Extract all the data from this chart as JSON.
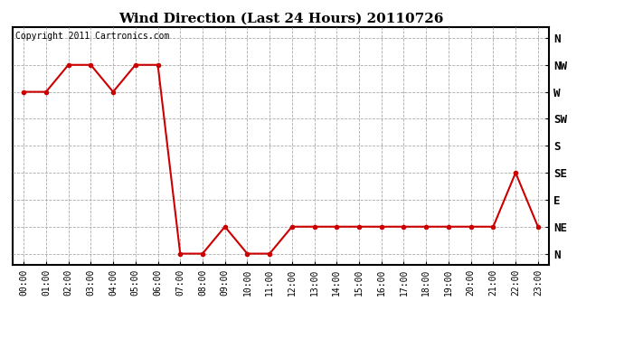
{
  "title": "Wind Direction (Last 24 Hours) 20110726",
  "copyright": "Copyright 2011 Cartronics.com",
  "line_color": "#cc0000",
  "fig_bg_color": "#ffffff",
  "plot_bg_color": "#ffffff",
  "grid_color": "#aaaaaa",
  "times": [
    "00:00",
    "01:00",
    "02:00",
    "03:00",
    "04:00",
    "05:00",
    "06:00",
    "07:00",
    "08:00",
    "09:00",
    "10:00",
    "11:00",
    "12:00",
    "13:00",
    "14:00",
    "15:00",
    "16:00",
    "17:00",
    "18:00",
    "19:00",
    "20:00",
    "21:00",
    "22:00",
    "23:00"
  ],
  "values": [
    270,
    270,
    315,
    315,
    270,
    315,
    315,
    0,
    0,
    45,
    0,
    0,
    45,
    45,
    45,
    45,
    45,
    45,
    45,
    45,
    45,
    45,
    135,
    45
  ],
  "yticks": [
    360,
    315,
    270,
    225,
    180,
    135,
    90,
    45,
    0
  ],
  "ylabels": [
    "N",
    "NW",
    "W",
    "SW",
    "S",
    "SE",
    "E",
    "NE",
    "N"
  ],
  "marker": "o",
  "marker_size": 3,
  "linewidth": 1.5,
  "title_fontsize": 11,
  "tick_fontsize": 7,
  "ytick_fontsize": 9,
  "copyright_fontsize": 7
}
